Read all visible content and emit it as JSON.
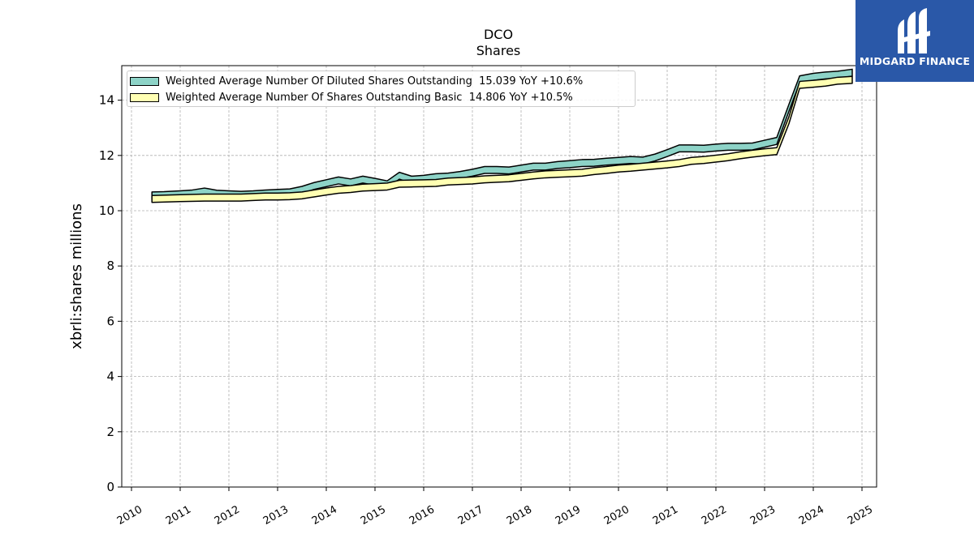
{
  "title": "DCO",
  "subtitle": "Shares",
  "brand": {
    "name": "MIDGARD FINANCE",
    "color": "#2a58a8"
  },
  "chart_data": {
    "type": "area",
    "title": "DCO\nShares",
    "xlabel": "",
    "ylabel": "xbrli:shares millions",
    "xlim": [
      2009.8,
      2025.3
    ],
    "ylim": [
      0,
      15.25
    ],
    "x_ticks": [
      "2010",
      "2011",
      "2012",
      "2013",
      "2014",
      "2015",
      "2016",
      "2017",
      "2018",
      "2019",
      "2020",
      "2021",
      "2022",
      "2023",
      "2024",
      "2025"
    ],
    "y_ticks": [
      "0",
      "2",
      "4",
      "6",
      "8",
      "10",
      "12",
      "14"
    ],
    "grid": true,
    "legend_position": "upper-left",
    "series": [
      {
        "name": "Weighted Average Number Of Diluted Shares Outstanding",
        "legend_label": "Weighted Average Number Of Diluted Shares Outstanding  15.039 YoY +10.6%",
        "color": "#8dd3c7",
        "x": [
          2010.42,
          2010.67,
          2011.0,
          2011.25,
          2011.5,
          2011.75,
          2012.0,
          2012.25,
          2012.5,
          2012.75,
          2013.0,
          2013.25,
          2013.5,
          2013.75,
          2014.0,
          2014.25,
          2014.5,
          2014.75,
          2015.0,
          2015.25,
          2015.5,
          2015.75,
          2016.0,
          2016.25,
          2016.5,
          2016.75,
          2017.0,
          2017.25,
          2017.5,
          2017.75,
          2018.0,
          2018.25,
          2018.5,
          2018.75,
          2019.0,
          2019.25,
          2019.5,
          2019.75,
          2020.0,
          2020.25,
          2020.5,
          2020.75,
          2021.0,
          2021.25,
          2021.5,
          2021.75,
          2022.0,
          2022.25,
          2022.5,
          2022.75,
          2023.0,
          2023.25,
          2023.5,
          2023.72,
          2024.0,
          2024.25,
          2024.5,
          2024.8
        ],
        "values": [
          10.68,
          10.69,
          10.72,
          10.75,
          10.82,
          10.74,
          10.72,
          10.7,
          10.72,
          10.75,
          10.77,
          10.79,
          10.88,
          11.02,
          11.12,
          11.22,
          11.15,
          11.25,
          11.17,
          11.08,
          11.39,
          11.25,
          11.28,
          11.34,
          11.36,
          11.42,
          11.5,
          11.6,
          11.6,
          11.58,
          11.65,
          11.72,
          11.72,
          11.78,
          11.81,
          11.85,
          11.86,
          11.9,
          11.93,
          11.96,
          11.94,
          12.05,
          12.21,
          12.38,
          12.38,
          12.37,
          12.41,
          12.44,
          12.44,
          12.45,
          12.55,
          12.65,
          13.85,
          14.88,
          14.97,
          15.02,
          15.05,
          15.12
        ]
      },
      {
        "name": "Weighted Average Number Of Shares Outstanding Basic",
        "legend_label": "Weighted Average Number Of Shares Outstanding Basic  14.806 YoY +10.5%",
        "color": "#ffffb3",
        "x": [
          2010.42,
          2011.0,
          2011.5,
          2012.0,
          2012.25,
          2012.5,
          2012.75,
          2013.0,
          2013.25,
          2013.5,
          2013.75,
          2014.0,
          2014.25,
          2014.5,
          2014.75,
          2015.0,
          2015.25,
          2015.5,
          2015.75,
          2016.0,
          2016.25,
          2016.5,
          2016.75,
          2017.0,
          2017.25,
          2017.5,
          2017.75,
          2018.0,
          2018.25,
          2018.5,
          2018.75,
          2019.0,
          2019.25,
          2019.5,
          2019.75,
          2020.0,
          2020.25,
          2020.5,
          2020.75,
          2021.0,
          2021.25,
          2021.5,
          2021.75,
          2022.0,
          2022.25,
          2022.5,
          2022.75,
          2023.0,
          2023.25,
          2023.5,
          2023.72,
          2024.0,
          2024.25,
          2024.5,
          2024.8
        ],
        "values": [
          10.55,
          10.58,
          10.6,
          10.6,
          10.6,
          10.62,
          10.64,
          10.64,
          10.65,
          10.68,
          10.75,
          10.82,
          10.88,
          10.91,
          10.96,
          10.98,
          11.0,
          11.1,
          11.11,
          11.12,
          11.13,
          11.18,
          11.2,
          11.22,
          11.26,
          11.28,
          11.3,
          11.35,
          11.4,
          11.44,
          11.46,
          11.48,
          11.5,
          11.56,
          11.6,
          11.65,
          11.68,
          11.72,
          11.76,
          11.8,
          11.85,
          11.93,
          11.96,
          12.01,
          12.06,
          12.13,
          12.19,
          12.24,
          12.28,
          13.4,
          14.68,
          14.72,
          14.76,
          14.83,
          14.86
        ]
      }
    ]
  }
}
